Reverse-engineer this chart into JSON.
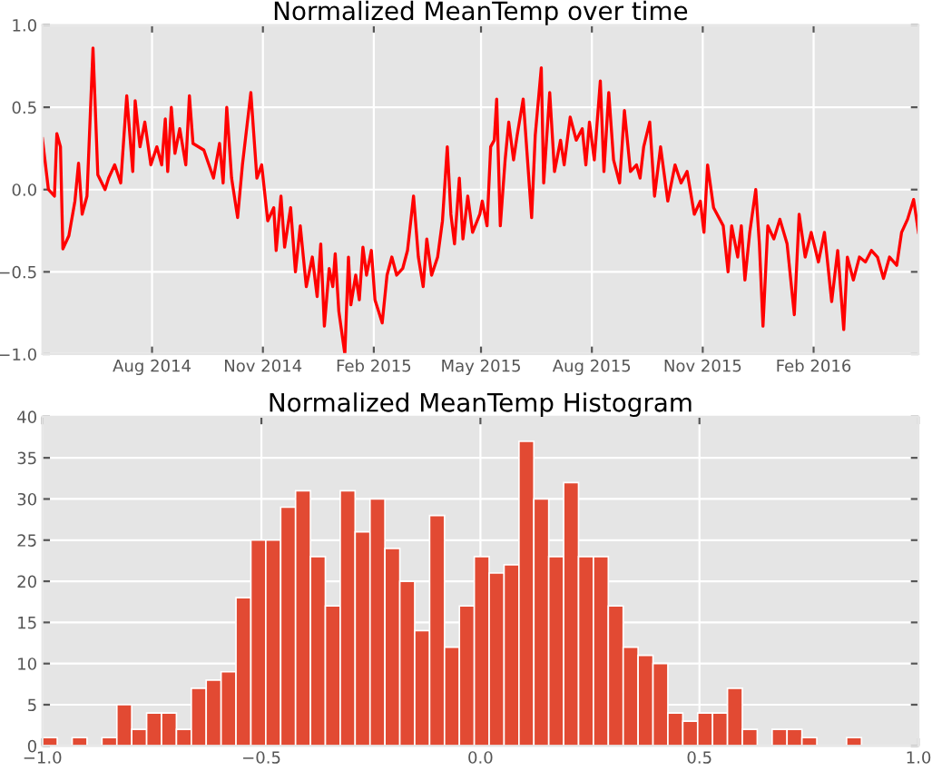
{
  "chart_data": [
    {
      "type": "line",
      "title": "Normalized MeanTemp over time",
      "x": [
        "2014-05-02",
        "2014-05-07",
        "2014-05-12",
        "2014-05-14",
        "2014-05-17",
        "2014-05-19",
        "2014-05-24",
        "2014-05-29",
        "2014-06-01",
        "2014-06-04",
        "2014-06-08",
        "2014-06-13",
        "2014-06-17",
        "2014-06-23",
        "2014-06-26",
        "2014-07-01",
        "2014-07-06",
        "2014-07-11",
        "2014-07-16",
        "2014-07-18",
        "2014-07-22",
        "2014-07-26",
        "2014-07-31",
        "2014-08-05",
        "2014-08-09",
        "2014-08-12",
        "2014-08-14",
        "2014-08-17",
        "2014-08-20",
        "2014-08-24",
        "2014-08-29",
        "2014-09-01",
        "2014-09-04",
        "2014-09-13",
        "2014-09-21",
        "2014-09-26",
        "2014-09-29",
        "2014-10-02",
        "2014-10-06",
        "2014-10-11",
        "2014-10-15",
        "2014-10-22",
        "2014-10-27",
        "2014-10-31",
        "2014-11-05",
        "2014-11-10",
        "2014-11-12",
        "2014-11-16",
        "2014-11-19",
        "2014-11-24",
        "2014-11-28",
        "2014-12-02",
        "2014-12-07",
        "2014-12-12",
        "2014-12-16",
        "2014-12-19",
        "2014-12-22",
        "2014-12-26",
        "2014-12-29",
        "2014-12-31",
        "2015-01-03",
        "2015-01-08",
        "2015-01-11",
        "2015-01-13",
        "2015-01-17",
        "2015-01-20",
        "2015-01-23",
        "2015-01-26",
        "2015-01-30",
        "2015-02-02",
        "2015-02-08",
        "2015-02-12",
        "2015-02-16",
        "2015-02-20",
        "2015-02-25",
        "2015-03-01",
        "2015-03-06",
        "2015-03-10",
        "2015-03-14",
        "2015-03-17",
        "2015-03-21",
        "2015-03-26",
        "2015-03-30",
        "2015-04-03",
        "2015-04-06",
        "2015-04-09",
        "2015-04-13",
        "2015-04-16",
        "2015-04-20",
        "2015-04-24",
        "2015-04-30",
        "2015-05-02",
        "2015-05-06",
        "2015-05-09",
        "2015-05-12",
        "2015-05-14",
        "2015-05-17",
        "2015-05-21",
        "2015-05-24",
        "2015-05-28",
        "2015-05-31",
        "2015-06-05",
        "2015-06-12",
        "2015-06-15",
        "2015-06-20",
        "2015-06-22",
        "2015-06-27",
        "2015-07-01",
        "2015-07-06",
        "2015-07-09",
        "2015-07-14",
        "2015-07-19",
        "2015-07-24",
        "2015-07-27",
        "2015-07-30",
        "2015-08-03",
        "2015-08-08",
        "2015-08-11",
        "2015-08-15",
        "2015-08-19",
        "2015-08-24",
        "2015-08-28",
        "2015-09-02",
        "2015-09-07",
        "2015-09-10",
        "2015-09-13",
        "2015-09-18",
        "2015-09-22",
        "2015-09-27",
        "2015-10-03",
        "2015-10-09",
        "2015-10-14",
        "2015-10-19",
        "2015-10-25",
        "2015-10-30",
        "2015-11-02",
        "2015-11-05",
        "2015-11-10",
        "2015-11-18",
        "2015-11-22",
        "2015-11-25",
        "2015-11-30",
        "2015-12-03",
        "2015-12-06",
        "2015-12-10",
        "2015-12-15",
        "2015-12-18",
        "2015-12-21",
        "2015-12-25",
        "2015-12-30",
        "2016-01-04",
        "2016-01-10",
        "2016-01-16",
        "2016-01-20",
        "2016-01-25",
        "2016-01-30",
        "2016-02-05",
        "2016-02-10",
        "2016-02-16",
        "2016-02-21",
        "2016-02-26",
        "2016-02-29",
        "2016-03-05",
        "2016-03-10",
        "2016-03-15",
        "2016-03-20",
        "2016-03-25",
        "2016-03-30",
        "2016-04-04",
        "2016-04-10",
        "2016-04-14",
        "2016-04-19",
        "2016-04-24",
        "2016-04-28"
      ],
      "series": [
        {
          "color": "#ff0000",
          "values": [
            0.31,
            0.0,
            -0.04,
            0.34,
            0.26,
            -0.36,
            -0.28,
            -0.07,
            0.16,
            -0.15,
            -0.04,
            0.86,
            0.09,
            0.0,
            0.07,
            0.15,
            0.04,
            0.57,
            0.11,
            0.54,
            0.26,
            0.41,
            0.15,
            0.26,
            0.15,
            0.43,
            0.11,
            0.5,
            0.22,
            0.37,
            0.15,
            0.57,
            0.28,
            0.24,
            0.07,
            0.28,
            0.04,
            0.5,
            0.07,
            -0.17,
            0.15,
            0.59,
            0.07,
            0.15,
            -0.19,
            -0.11,
            -0.37,
            -0.04,
            -0.35,
            -0.11,
            -0.5,
            -0.22,
            -0.59,
            -0.41,
            -0.65,
            -0.33,
            -0.83,
            -0.48,
            -0.59,
            -0.39,
            -0.74,
            -1.0,
            -0.41,
            -0.7,
            -0.52,
            -0.67,
            -0.35,
            -0.52,
            -0.37,
            -0.67,
            -0.81,
            -0.52,
            -0.41,
            -0.52,
            -0.48,
            -0.37,
            -0.04,
            -0.41,
            -0.59,
            -0.3,
            -0.52,
            -0.41,
            -0.19,
            0.26,
            -0.15,
            -0.33,
            0.07,
            -0.3,
            -0.04,
            -0.26,
            -0.15,
            -0.07,
            -0.22,
            0.26,
            0.3,
            0.55,
            -0.22,
            0.18,
            0.41,
            0.18,
            0.33,
            0.55,
            -0.17,
            0.33,
            0.74,
            0.04,
            0.59,
            0.11,
            0.3,
            0.15,
            0.44,
            0.3,
            0.37,
            0.15,
            0.41,
            0.18,
            0.66,
            0.11,
            0.59,
            0.18,
            0.04,
            0.48,
            0.11,
            0.15,
            0.07,
            0.26,
            0.41,
            -0.04,
            0.26,
            -0.07,
            0.15,
            0.04,
            0.11,
            -0.15,
            -0.07,
            -0.26,
            0.15,
            -0.11,
            -0.22,
            -0.5,
            -0.22,
            -0.41,
            -0.22,
            -0.55,
            -0.26,
            0.0,
            -0.33,
            -0.83,
            -0.22,
            -0.3,
            -0.18,
            -0.33,
            -0.76,
            -0.15,
            -0.41,
            -0.26,
            -0.44,
            -0.26,
            -0.68,
            -0.37,
            -0.85,
            -0.41,
            -0.55,
            -0.41,
            -0.44,
            -0.37,
            -0.41,
            -0.54,
            -0.41,
            -0.46,
            -0.26,
            -0.18,
            -0.06,
            -0.26
          ]
        }
      ],
      "xlim": [
        "2014-05-02",
        "2016-04-28"
      ],
      "xticks": [
        {
          "value": "2014-08-01",
          "label": "Aug 2014"
        },
        {
          "value": "2014-11-01",
          "label": "Nov 2014"
        },
        {
          "value": "2015-02-01",
          "label": "Feb 2015"
        },
        {
          "value": "2015-05-01",
          "label": "May 2015"
        },
        {
          "value": "2015-08-01",
          "label": "Aug 2015"
        },
        {
          "value": "2015-11-01",
          "label": "Nov 2015"
        },
        {
          "value": "2016-02-01",
          "label": "Feb 2016"
        }
      ],
      "ylim": [
        -1.0,
        1.0
      ],
      "yticks": [
        {
          "value": -1.0,
          "label": "−1.0"
        },
        {
          "value": -0.5,
          "label": "−0.5"
        },
        {
          "value": 0.0,
          "label": "0.0"
        },
        {
          "value": 0.5,
          "label": "0.5"
        },
        {
          "value": 1.0,
          "label": "1.0"
        }
      ],
      "grid": true,
      "marker": "none",
      "line_style": "solid"
    },
    {
      "type": "histogram",
      "title": "Normalized MeanTemp Histogram",
      "color": "#e24a33",
      "bins": [
        -1.0,
        -0.966,
        -0.932,
        -0.898,
        -0.864,
        -0.83,
        -0.796,
        -0.762,
        -0.728,
        -0.694,
        -0.66,
        -0.626,
        -0.592,
        -0.558,
        -0.524,
        -0.49,
        -0.456,
        -0.422,
        -0.388,
        -0.354,
        -0.32,
        -0.286,
        -0.252,
        -0.218,
        -0.184,
        -0.15,
        -0.116,
        -0.082,
        -0.048,
        -0.014,
        0.02,
        0.054,
        0.088,
        0.122,
        0.156,
        0.19,
        0.224,
        0.258,
        0.292,
        0.326,
        0.36,
        0.394,
        0.428,
        0.462,
        0.496,
        0.53,
        0.564,
        0.598,
        0.632,
        0.666,
        0.7,
        0.734,
        0.768,
        0.802,
        0.836,
        0.87
      ],
      "values": [
        1,
        0,
        1,
        0,
        1,
        5,
        2,
        4,
        4,
        2,
        7,
        8,
        9,
        18,
        25,
        25,
        29,
        31,
        23,
        17,
        31,
        26,
        30,
        24,
        20,
        14,
        28,
        12,
        17,
        23,
        21,
        22,
        37,
        30,
        23,
        32,
        23,
        23,
        17,
        12,
        11,
        10,
        4,
        3,
        4,
        4,
        7,
        2,
        0,
        2,
        2,
        1,
        0,
        0,
        1
      ],
      "xlim": [
        -1.0,
        1.0
      ],
      "xticks": [
        {
          "value": -1.0,
          "label": "−1.0"
        },
        {
          "value": -0.5,
          "label": "−0.5"
        },
        {
          "value": 0.0,
          "label": "0.0"
        },
        {
          "value": 0.5,
          "label": "0.5"
        },
        {
          "value": 1.0,
          "label": "1.0"
        }
      ],
      "ylim": [
        0,
        40
      ],
      "yticks": [
        0,
        5,
        10,
        15,
        20,
        25,
        30,
        35,
        40
      ],
      "grid": true
    }
  ]
}
